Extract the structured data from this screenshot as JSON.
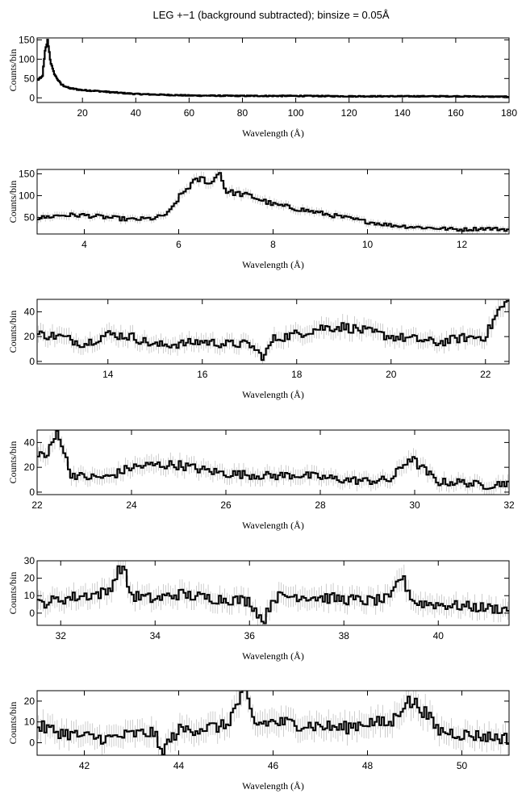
{
  "figure": {
    "title": "LEG +−1 (background subtracted); binsize = 0.05Å"
  },
  "chart_data": [
    {
      "type": "line",
      "title": "",
      "xlabel": "Wavelength (Å)",
      "ylabel": "Counts/bin",
      "xlim": [
        3,
        180
      ],
      "ylim": [
        -12,
        155
      ],
      "xticks": [
        20,
        40,
        60,
        80,
        100,
        120,
        140,
        160,
        180
      ],
      "yticks": [
        0,
        50,
        100,
        150
      ],
      "grid": false,
      "style": "step-with-error-bars",
      "x": [
        3,
        5,
        6,
        7,
        8,
        9,
        10,
        12,
        15,
        20,
        25,
        30,
        40,
        50,
        60,
        80,
        100,
        120,
        140,
        160,
        175
      ],
      "y": [
        45,
        55,
        120,
        150,
        95,
        70,
        55,
        35,
        25,
        20,
        18,
        15,
        10,
        8,
        6,
        5,
        5,
        4,
        4,
        4,
        3
      ],
      "series": [
        {
          "values": [
            45,
            55,
            120,
            150,
            95,
            70,
            55,
            35,
            25,
            20,
            18,
            15,
            10,
            8,
            6,
            5,
            5,
            4,
            4,
            4,
            3
          ]
        }
      ]
    },
    {
      "type": "line",
      "title": "",
      "xlabel": "Wavelength (Å)",
      "ylabel": "Counts/bin",
      "xlim": [
        3,
        13
      ],
      "ylim": [
        12,
        160
      ],
      "xticks": [
        4,
        6,
        8,
        10,
        12
      ],
      "yticks": [
        50,
        100,
        150
      ],
      "grid": false,
      "style": "step-with-error-bars",
      "x": [
        3,
        3.5,
        4,
        4.5,
        5,
        5.5,
        5.8,
        6,
        6.3,
        6.5,
        6.7,
        6.85,
        7,
        7.5,
        8,
        8.5,
        9,
        9.5,
        10,
        10.5,
        11,
        11.5,
        12,
        12.5,
        13
      ],
      "y": [
        48,
        55,
        55,
        50,
        45,
        48,
        60,
        95,
        130,
        140,
        125,
        160,
        110,
        100,
        80,
        70,
        60,
        50,
        40,
        32,
        28,
        25,
        22,
        25,
        22
      ],
      "series": [
        {
          "values": [
            48,
            55,
            55,
            50,
            45,
            48,
            60,
            95,
            130,
            140,
            125,
            160,
            110,
            100,
            80,
            70,
            60,
            50,
            40,
            32,
            28,
            25,
            22,
            25,
            22
          ]
        }
      ]
    },
    {
      "type": "line",
      "title": "",
      "xlabel": "Wavelength (Å)",
      "ylabel": "Counts/bin",
      "xlim": [
        12.5,
        22.5
      ],
      "ylim": [
        -2,
        50
      ],
      "xticks": [
        14,
        16,
        18,
        20,
        22
      ],
      "yticks": [
        0,
        20,
        40
      ],
      "grid": false,
      "style": "step-with-error-bars",
      "x": [
        12.5,
        13,
        13.5,
        14,
        14.5,
        15,
        15.5,
        16,
        16.5,
        17,
        17.3,
        17.5,
        18,
        18.5,
        19,
        19.5,
        20,
        20.5,
        21,
        21.5,
        22,
        22.3,
        22.5
      ],
      "y": [
        22,
        20,
        14,
        22,
        20,
        13,
        14,
        16,
        14,
        14,
        3,
        18,
        22,
        27,
        28,
        24,
        20,
        18,
        15,
        19,
        20,
        42,
        48
      ],
      "series": [
        {
          "values": [
            22,
            20,
            14,
            22,
            20,
            13,
            14,
            16,
            14,
            14,
            3,
            18,
            22,
            27,
            28,
            24,
            20,
            18,
            15,
            19,
            20,
            42,
            48
          ]
        }
      ]
    },
    {
      "type": "line",
      "title": "",
      "xlabel": "Wavelength (Å)",
      "ylabel": "Counts/bin",
      "xlim": [
        22,
        32
      ],
      "ylim": [
        -2,
        50
      ],
      "xticks": [
        22,
        24,
        26,
        28,
        30,
        32
      ],
      "yticks": [
        0,
        20,
        40
      ],
      "grid": false,
      "style": "step-with-error-bars",
      "x": [
        22,
        22.2,
        22.45,
        22.7,
        23,
        23.5,
        24,
        24.5,
        25,
        25.5,
        26,
        26.5,
        27,
        27.5,
        28,
        28.5,
        29,
        29.5,
        29.9,
        30.5,
        31,
        31.5,
        32
      ],
      "y": [
        33,
        28,
        50,
        15,
        12,
        12,
        20,
        22,
        22,
        18,
        15,
        14,
        13,
        14,
        12,
        10,
        9,
        10,
        28,
        8,
        8,
        5,
        8
      ],
      "series": [
        {
          "values": [
            33,
            28,
            50,
            15,
            12,
            12,
            20,
            22,
            22,
            18,
            15,
            14,
            13,
            14,
            12,
            10,
            9,
            10,
            28,
            8,
            8,
            5,
            8
          ]
        }
      ]
    },
    {
      "type": "line",
      "title": "",
      "xlabel": "Wavelength (Å)",
      "ylabel": "Counts/bin",
      "xlim": [
        31.5,
        41.5
      ],
      "ylim": [
        -7,
        30
      ],
      "xticks": [
        32,
        34,
        36,
        38,
        40
      ],
      "yticks": [
        0,
        10,
        20,
        30
      ],
      "grid": false,
      "style": "step-with-error-bars",
      "x": [
        31.5,
        32,
        32.5,
        33,
        33.3,
        33.5,
        34,
        34.5,
        35,
        35.5,
        36,
        36.3,
        36.5,
        37,
        37.5,
        38,
        38.5,
        39,
        39.2,
        39.5,
        40,
        40.5,
        41,
        41.5
      ],
      "y": [
        5,
        8,
        10,
        12,
        28,
        10,
        8,
        11,
        9,
        8,
        7,
        -5,
        9,
        10,
        9,
        8,
        7,
        8,
        22,
        6,
        5,
        4,
        3,
        2
      ],
      "series": [
        {
          "values": [
            5,
            8,
            10,
            12,
            28,
            10,
            8,
            11,
            9,
            8,
            7,
            -5,
            9,
            10,
            9,
            8,
            7,
            8,
            22,
            6,
            5,
            4,
            3,
            2
          ]
        }
      ]
    },
    {
      "type": "line",
      "title": "",
      "xlabel": "Wavelength (Å)",
      "ylabel": "Counts/bin",
      "xlim": [
        41,
        51
      ],
      "ylim": [
        -6,
        25
      ],
      "xticks": [
        42,
        44,
        46,
        48,
        50
      ],
      "yticks": [
        0,
        10,
        20
      ],
      "grid": false,
      "style": "step-with-error-bars",
      "x": [
        41,
        41.5,
        42,
        42.5,
        43,
        43.5,
        43.6,
        44,
        44.5,
        45,
        45.4,
        45.6,
        46,
        46.5,
        47,
        47.5,
        48,
        48.5,
        48.8,
        49.1,
        49.5,
        50,
        50.5,
        51
      ],
      "y": [
        8,
        5,
        3,
        2,
        4,
        5,
        -5,
        6,
        7,
        8,
        25,
        9,
        10,
        9,
        8,
        7,
        10,
        9,
        20,
        18,
        6,
        4,
        3,
        2
      ],
      "series": [
        {
          "values": [
            8,
            5,
            3,
            2,
            4,
            5,
            -5,
            6,
            7,
            8,
            25,
            9,
            10,
            9,
            8,
            7,
            10,
            9,
            20,
            18,
            6,
            4,
            3,
            2
          ]
        }
      ]
    }
  ]
}
